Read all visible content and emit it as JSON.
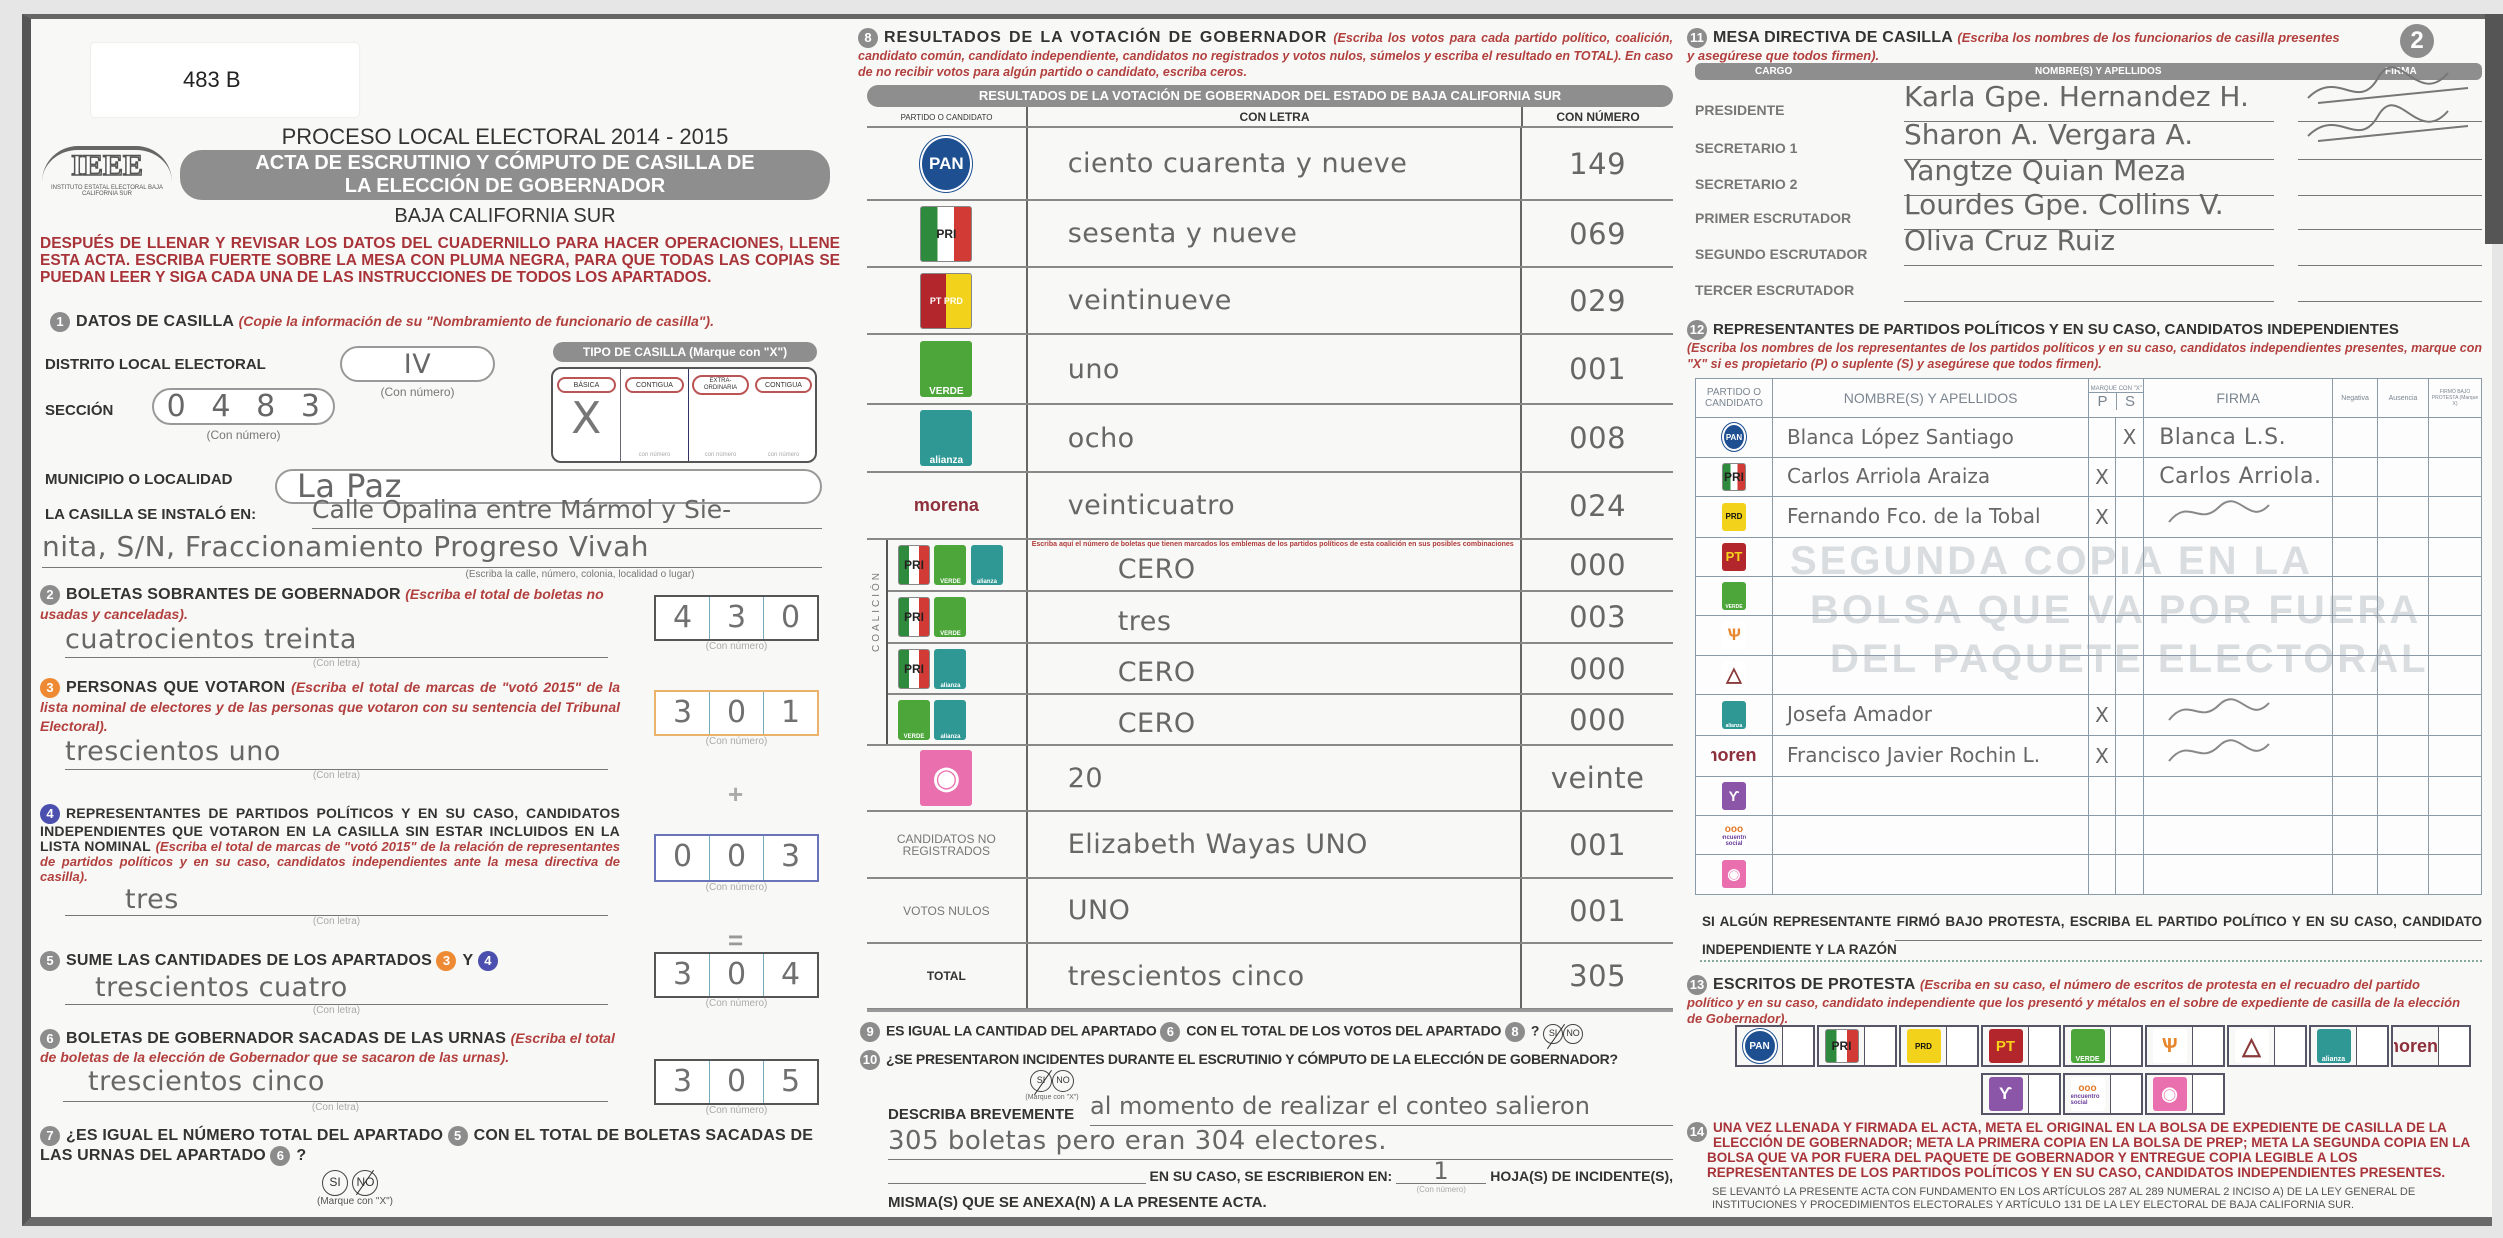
{
  "folio": "483 B",
  "header": {
    "process": "PROCESO LOCAL ELECTORAL 2014 - 2015",
    "title_line1": "ACTA DE ESCRUTINIO Y CÓMPUTO DE CASILLA DE",
    "title_line2": "LA ELECCIÓN DE GOBERNADOR",
    "state": "BAJA CALIFORNIA SUR",
    "logo_text": "IEEE",
    "logo_caption": "INSTITUTO ESTATAL ELECTORAL BAJA CALIFORNIA SUR",
    "instructions": "DESPUÉS DE LLENAR Y REVISAR LOS DATOS DEL CUADERNILLO PARA HACER OPERACIONES, LLENE ESTA ACTA. ESCRIBA FUERTE SOBRE LA MESA CON PLUMA NEGRA, PARA QUE TODAS LAS COPIAS SE PUEDAN LEER Y SIGA CADA UNA DE LAS INSTRUCCIONES DE TODOS LOS APARTADOS."
  },
  "captions": {
    "con_letra": "(Con letra)",
    "con_numero": "(Con número)",
    "con_numero_lower": "con número",
    "marque": "(Marque con \"X\")",
    "si": "SI",
    "no": "NO",
    "plus": "+",
    "equals": "="
  },
  "s1": {
    "num": "1",
    "title": "DATOS DE CASILLA",
    "note": "(Copie la información de su \"Nombramiento de funcionario de casilla\").",
    "distrito_label": "DISTRITO LOCAL ELECTORAL",
    "distrito": "IV",
    "seccion_label": "SECCIÓN",
    "seccion": [
      "0",
      "4",
      "8",
      "3"
    ],
    "municipio_label": "MUNICIPIO O LOCALIDAD",
    "municipio": "La Paz",
    "instalo_label": "LA CASILLA SE INSTALÓ EN:",
    "instalo_line1": "Calle Opalina entre Mármol y Sie-",
    "instalo_line2": "nita, S/N, Fraccionamiento Progreso Vivah",
    "instalo_caption": "(Escriba la calle, número, colonia, localidad o lugar)",
    "tipo": {
      "title": "TIPO DE CASILLA (Marque con \"X\")",
      "options": [
        "BÁSICA",
        "CONTIGUA",
        "EXTRA-ORDINARIA",
        "CONTIGUA"
      ],
      "mark": "X"
    }
  },
  "s2": {
    "num": "2",
    "title": "BOLETAS SOBRANTES DE GOBERNADOR",
    "note": "(Escriba el total de boletas no usadas y canceladas).",
    "letter": "cuatrocientos treinta",
    "digits": [
      "4",
      "3",
      "0"
    ]
  },
  "s3": {
    "num": "3",
    "title": "PERSONAS QUE VOTARON",
    "note": "(Escriba el total de marcas de \"votó 2015\" de la lista nominal de electores y de las personas que votaron con su sentencia del Tribunal Electoral).",
    "letter": "trescientos uno",
    "digits": [
      "3",
      "0",
      "1"
    ]
  },
  "s4": {
    "num": "4",
    "title": "REPRESENTANTES DE PARTIDOS POLÍTICOS Y EN SU CASO, CANDIDATOS INDEPENDIENTES QUE VOTARON EN LA CASILLA SIN ESTAR INCLUIDOS EN LA LISTA NOMINAL",
    "note": "(Escriba el total de marcas de \"votó 2015\" de la relación de representantes de partidos políticos y en su caso, candidatos independientes ante la mesa directiva de casilla).",
    "letter": "tres",
    "digits": [
      "0",
      "0",
      "3"
    ]
  },
  "s5": {
    "num": "5",
    "title": "SUME LAS CANTIDADES DE LOS APARTADOS",
    "ref1": "3",
    "and": "Y",
    "ref2": "4",
    "letter": "trescientos cuatro",
    "digits": [
      "3",
      "0",
      "4"
    ]
  },
  "s6": {
    "num": "6",
    "title": "BOLETAS DE GOBERNADOR SACADAS DE LAS URNAS",
    "note": "(Escriba el total de boletas de la elección de Gobernador que se sacaron de las urnas).",
    "letter": "trescientos cinco",
    "digits": [
      "3",
      "0",
      "5"
    ]
  },
  "s7": {
    "num": "7",
    "text1": "¿ES IGUAL EL NÚMERO TOTAL DEL APARTADO",
    "ref1": "5",
    "text2": "CON EL TOTAL DE BOLETAS SACADAS DE LAS",
    "text3": "URNAS DEL APARTADO",
    "ref2": "6",
    "q": "?",
    "answer": "NO"
  },
  "s8": {
    "num": "8",
    "title": "RESULTADOS DE LA VOTACIÓN DE GOBERNADOR",
    "note": "(Escriba los votos para cada partido político, coalición, candidato común, candidato independiente, candidatos no registrados y votos nulos, súmelos y escriba el resultado en TOTAL). En caso de no recibir votos para algún partido o candidato, escriba ceros.",
    "bar": "RESULTADOS DE LA VOTACIÓN DE GOBERNADOR DEL ESTADO DE BAJA CALIFORNIA SUR",
    "col_party": "PARTIDO O CANDIDATO",
    "col_letter": "CON LETRA",
    "col_number": "CON NÚMERO",
    "coalition_label": "COALICIÓN",
    "coalition_note": "Escriba aquí el número de boletas que tienen marcados los emblemas de los partidos políticos de esta coalición en sus posibles combinaciones",
    "rows": [
      {
        "logos": [
          "pan"
        ],
        "letter": "ciento cuarenta y nueve",
        "number": "149"
      },
      {
        "logos": [
          "pri"
        ],
        "letter": "sesenta y nueve",
        "number": "069"
      },
      {
        "logos": [
          "pt_prd"
        ],
        "letter": "veintinueve",
        "number": "029"
      },
      {
        "logos": [
          "verde"
        ],
        "letter": "uno",
        "number": "001"
      },
      {
        "logos": [
          "alianza"
        ],
        "letter": "ocho",
        "number": "008"
      },
      {
        "logos": [
          "morena"
        ],
        "letter": "veinticuatro",
        "number": "024"
      },
      {
        "logos": [
          "pri",
          "verde",
          "alianza"
        ],
        "coalition": true,
        "letter": "CERO",
        "number": "000"
      },
      {
        "logos": [
          "pri",
          "verde"
        ],
        "coalition": true,
        "letter": "tres",
        "number": "003"
      },
      {
        "logos": [
          "pri",
          "alianza"
        ],
        "coalition": true,
        "letter": "CERO",
        "number": "000"
      },
      {
        "logos": [
          "verde",
          "alianza"
        ],
        "coalition": true,
        "letter": "CERO",
        "number": "000"
      },
      {
        "logos": [
          "eye"
        ],
        "letter": "20",
        "number": "veinte"
      },
      {
        "label": "CANDIDATOS NO REGISTRADOS",
        "letter": "Elizabeth Wayas UNO",
        "number": "001"
      },
      {
        "label": "VOTOS NULOS",
        "letter": "UNO",
        "number": "001"
      },
      {
        "label": "TOTAL",
        "letter": "trescientos cinco",
        "number": "305",
        "bold": true
      }
    ]
  },
  "s9": {
    "num": "9",
    "text1": "ES IGUAL LA CANTIDAD DEL APARTADO",
    "ref1": "6",
    "text2": "CON EL TOTAL DE LOS VOTOS DEL APARTADO",
    "ref2": "8",
    "q": "?",
    "answer": "SI"
  },
  "s10": {
    "num": "10",
    "question": "¿SE PRESENTARON INCIDENTES DURANTE EL ESCRUTINIO Y CÓMPUTO DE LA ELECCIÓN DE GOBERNADOR?",
    "answer": "SI",
    "describe_label": "DESCRIBA BREVEMENTE",
    "describe_line1": "al momento de realizar el conteo salieron",
    "describe_line2": "305 boletas pero eran 304 electores.",
    "sheets_label": "EN SU CASO, SE ESCRIBIERON EN:",
    "sheets": "1",
    "sheets_suffix": "HOJA(S) DE INCIDENTE(S),",
    "annex": "MISMA(S) QUE SE ANEXA(N) A LA PRESENTE ACTA."
  },
  "s11": {
    "num": "11",
    "page": "2",
    "title": "MESA DIRECTIVA DE CASILLA",
    "note": "(Escriba los nombres de los funcionarios de casilla presentes y asegúrese que todos firmen).",
    "col_role": "CARGO",
    "col_name": "NOMBRE(S) Y APELLIDOS",
    "col_sign": "FIRMA",
    "officials": [
      {
        "role": "PRESIDENTE",
        "name": "Karla Gpe. Hernandez H.",
        "signed": true
      },
      {
        "role": "SECRETARIO 1",
        "name": "Sharon A. Vergara A.",
        "signed": true
      },
      {
        "role": "SECRETARIO 2",
        "name": "Yangtze Quian Meza",
        "signed": false
      },
      {
        "role": "PRIMER ESCRUTADOR",
        "name": "Lourdes Gpe. Collins V.",
        "signed": false
      },
      {
        "role": "SEGUNDO ESCRUTADOR",
        "name": "Oliva Cruz Ruiz",
        "signed": false
      },
      {
        "role": "TERCER ESCRUTADOR",
        "name": "",
        "signed": false
      }
    ]
  },
  "s12": {
    "num": "12",
    "title": "REPRESENTANTES DE  PARTIDOS POLÍTICOS Y EN SU CASO, CANDIDATOS INDEPENDIENTES",
    "note": "(Escriba los nombres de los representantes de los partidos políticos y en su caso, candidatos independientes presentes, marque con \"X\" si es propietario (P) o suplente (S) y asegúrese que todos firmen).",
    "col_party": "PARTIDO O CANDIDATO",
    "col_name": "NOMBRE(S) Y APELLIDOS",
    "col_mark": "MARQUE CON \"X\"",
    "col_p": "P",
    "col_s": "S",
    "col_sign": "FIRMA",
    "col_neg": "Negativa",
    "col_aus": "Ausencia",
    "col_protest": "FIRMÓ BAJO PROTESTA (Marque X)",
    "reps": [
      {
        "party": "pan",
        "name": "Blanca López Santiago",
        "p": "",
        "s": "X",
        "sign": "Blanca L.S."
      },
      {
        "party": "pri",
        "name": "Carlos Arriola Araiza",
        "p": "X",
        "s": "",
        "sign": "Carlos Arriola."
      },
      {
        "party": "prd",
        "name": "Fernando Fco. de la Tobal",
        "p": "X",
        "s": "",
        "sign": ""
      },
      {
        "party": "pt",
        "name": "",
        "p": "",
        "s": "",
        "sign": ""
      },
      {
        "party": "verde",
        "name": "",
        "p": "",
        "s": "",
        "sign": ""
      },
      {
        "party": "mc",
        "name": "",
        "p": "",
        "s": "",
        "sign": ""
      },
      {
        "party": "prs",
        "name": "",
        "p": "",
        "s": "",
        "sign": ""
      },
      {
        "party": "alianza",
        "name": "Josefa Amador",
        "p": "X",
        "s": "",
        "sign": ""
      },
      {
        "party": "morena",
        "name": "Francisco Javier Rochin L.",
        "p": "X",
        "s": "",
        "sign": ""
      },
      {
        "party": "humanista",
        "name": "",
        "p": "",
        "s": "",
        "sign": ""
      },
      {
        "party": "encuentro",
        "name": "",
        "p": "",
        "s": "",
        "sign": ""
      },
      {
        "party": "eye",
        "name": "",
        "p": "",
        "s": "",
        "sign": ""
      }
    ],
    "protest_text": "SI ALGÚN REPRESENTANTE FIRMÓ BAJO PROTESTA, ESCRIBA EL PARTIDO POLÍTICO Y EN SU CASO, CANDIDATO INDEPENDIENTE Y LA RAZÓN"
  },
  "s13": {
    "num": "13",
    "title": "ESCRITOS DE PROTESTA",
    "note": "(Escriba en su caso, el número de escritos de protesta en el recuadro del partido político y en su caso, candidato independiente que los presentó y métalos en el sobre de expediente de casilla de la elección de Gobernador).",
    "row1": [
      "pan",
      "pri",
      "prd",
      "pt",
      "verde",
      "mc",
      "prs",
      "alianza",
      "morena"
    ],
    "row2": [
      "humanista",
      "encuentro",
      "eye"
    ]
  },
  "s14": {
    "num": "14",
    "text": "UNA VEZ LLENADA Y FIRMADA EL ACTA, META EL ORIGINAL EN LA BOLSA DE EXPEDIENTE DE CASILLA DE LA ELECCIÓN DE GOBERNADOR; META LA PRIMERA COPIA EN LA BOLSA DE PREP; META LA SEGUNDA COPIA EN LA BOLSA QUE VA POR FUERA DEL PAQUETE DE GOBERNADOR  Y ENTREGUE COPIA LEGIBLE A LOS REPRESENTANTES DE LOS PARTIDOS POLÍTICOS Y EN SU CASO, CANDIDATOS INDEPENDIENTES PRESENTES.",
    "legal": "SE LEVANTÓ LA PRESENTE ACTA CON FUNDAMENTO EN LOS ARTÍCULOS 287 AL 289 NUMERAL 2 INCISO A) DE LA LEY GENERAL DE INSTITUCIONES Y PROCEDIMIENTOS ELECTORALES Y ARTÍCULO 131 DE LA LEY ELECTORAL DE BAJA CALIFORNIA SUR."
  },
  "watermark": [
    "SEGUNDA COPIA EN LA",
    "BOLSA QUE VA POR FUERA",
    "DEL PAQUETE ELECTORAL"
  ],
  "logos": {
    "pan": {
      "text": "PAN",
      "color": "#1d4f91"
    },
    "pri": {
      "text": "PRI",
      "color": "#2e8b3e"
    },
    "prd": {
      "text": "PRD",
      "color": "#f2d21b"
    },
    "pt": {
      "text": "PT",
      "color": "#b3262b"
    },
    "pt_prd": {
      "text": "PT PRD",
      "color": "#b3262b"
    },
    "verde": {
      "text": "VERDE",
      "color": "#4ca63a"
    },
    "alianza": {
      "text": "alianza",
      "color": "#2f9895"
    },
    "morena": {
      "text": "morena",
      "color": "#8e2f3c"
    },
    "mc": {
      "text": "",
      "color": "#e7862c"
    },
    "prs": {
      "text": "",
      "color": "#8a3a3a"
    },
    "humanista": {
      "text": "",
      "color": "#8b55a8"
    },
    "encuentro": {
      "text": "encuentro social",
      "color": "#6a3f9a"
    },
    "eye": {
      "text": "",
      "color": "#e96fae"
    }
  },
  "colors": {
    "instruction_red": "#a8343a",
    "header_gray": "#8e8e8e",
    "badge_orange": "#ee8a33",
    "badge_blue": "#4b4fae"
  }
}
